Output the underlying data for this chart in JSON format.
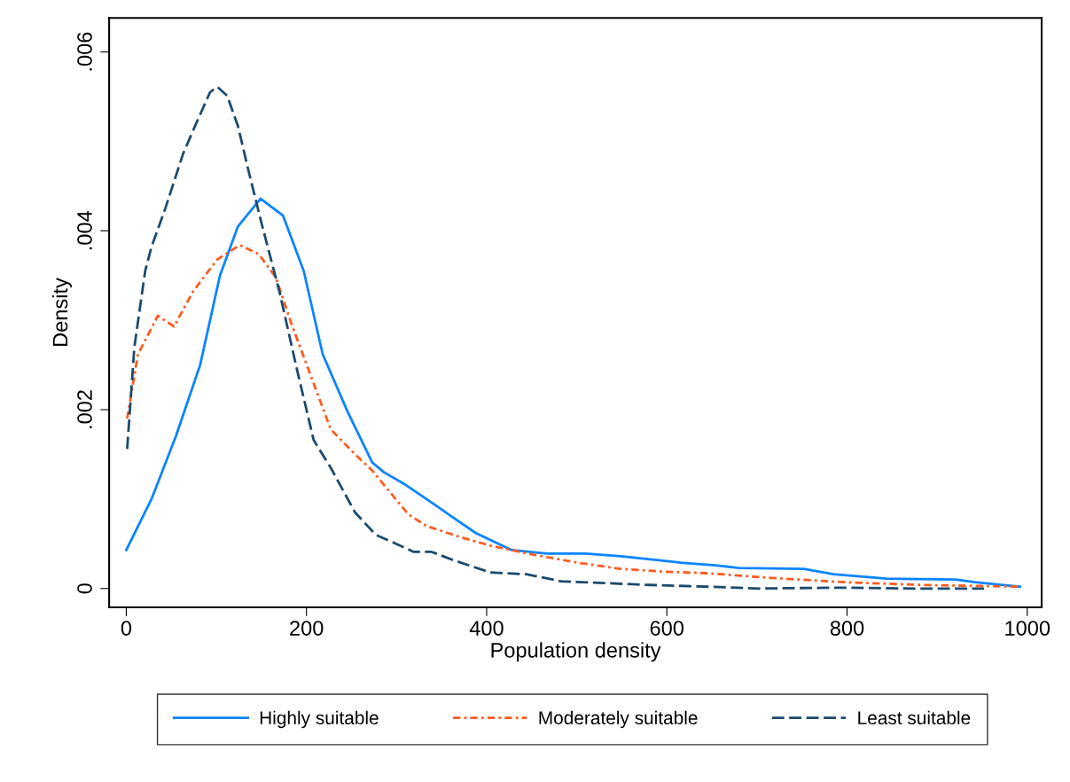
{
  "chart_data": {
    "type": "line",
    "xlabel": "Population density",
    "ylabel": "Density",
    "xlim": [
      -19,
      1016
    ],
    "ylim": [
      -0.00021,
      0.00638
    ],
    "xticks": [
      0,
      200,
      400,
      600,
      800,
      1000
    ],
    "yticks": [
      {
        "value": 0,
        "label": "0"
      },
      {
        "value": 0.002,
        "label": ".002"
      },
      {
        "value": 0.004,
        "label": ".004"
      },
      {
        "value": 0.006,
        "label": ".006"
      }
    ],
    "grid": false,
    "legend": "bottom",
    "marker": "none",
    "series": [
      {
        "name": "Highly suitable",
        "color": "#0a84ff",
        "line_style": "solid",
        "x": [
          0,
          28,
          55,
          82,
          104,
          124,
          149,
          174,
          197,
          218,
          246,
          273,
          286,
          310,
          339,
          362,
          388,
          428,
          467,
          510,
          549,
          598,
          615,
          654,
          680,
          752,
          785,
          844,
          920,
          942,
          992
        ],
        "values": [
          0.00043,
          0.001,
          0.0017,
          0.0025,
          0.0035,
          0.00405,
          0.00436,
          0.00417,
          0.00355,
          0.00262,
          0.00197,
          0.00141,
          0.0013,
          0.00116,
          0.00096,
          0.0008,
          0.00062,
          0.00043,
          0.00039,
          0.00039,
          0.00036,
          0.00031,
          0.00029,
          0.00026,
          0.00023,
          0.00022,
          0.00016,
          0.00011,
          0.0001,
          7e-05,
          2e-05
        ]
      },
      {
        "name": "Moderately suitable",
        "color": "#ff5a1f",
        "line_style": "dashdot",
        "x": [
          1,
          13,
          35,
          53,
          74,
          101,
          126,
          147,
          166,
          183,
          204,
          227,
          254,
          273,
          286,
          313,
          333,
          369,
          404,
          451,
          500,
          549,
          595,
          647,
          713,
          798,
          883,
          992
        ],
        "values": [
          0.0019,
          0.00262,
          0.00305,
          0.00293,
          0.00332,
          0.00368,
          0.00384,
          0.00374,
          0.00348,
          0.00297,
          0.0024,
          0.00178,
          0.0015,
          0.00132,
          0.00116,
          0.00083,
          0.0007,
          0.00058,
          0.00048,
          0.00038,
          0.00029,
          0.00022,
          0.00019,
          0.00017,
          0.00012,
          7e-05,
          4e-05,
          2e-05
        ]
      },
      {
        "name": "Least suitable",
        "color": "#1b4a6e",
        "line_style": "dashed",
        "x": [
          1,
          9,
          21,
          28,
          43,
          63,
          78,
          93,
          101,
          112,
          124,
          135,
          150,
          170,
          189,
          208,
          227,
          254,
          277,
          293,
          319,
          339,
          365,
          404,
          444,
          483,
          532,
          581,
          647,
          703,
          788,
          877,
          952
        ],
        "values": [
          0.00156,
          0.0027,
          0.00355,
          0.00382,
          0.00424,
          0.00486,
          0.00521,
          0.00555,
          0.00561,
          0.00551,
          0.00517,
          0.0047,
          0.00409,
          0.00332,
          0.00247,
          0.00166,
          0.00135,
          0.00085,
          0.0006,
          0.00053,
          0.00041,
          0.00041,
          0.00031,
          0.00018,
          0.00016,
          8e-05,
          6e-05,
          4e-05,
          2e-05,
          0,
          1e-05,
          0,
          0
        ]
      }
    ]
  }
}
